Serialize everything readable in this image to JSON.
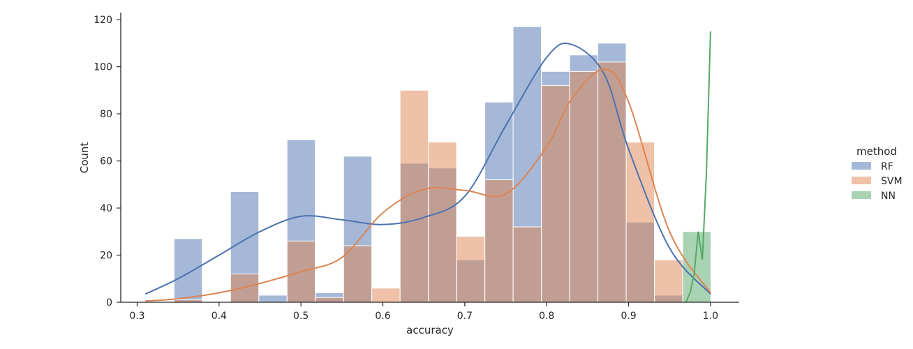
{
  "chart_data": {
    "type": "histogram",
    "xlabel": "accuracy",
    "ylabel": "Count",
    "xlim": [
      0.28,
      1.035
    ],
    "ylim": [
      0,
      123
    ],
    "x_ticks": [
      0.3,
      0.4,
      0.5,
      0.6,
      0.7,
      0.8,
      0.9,
      1.0
    ],
    "x_tick_labels": [
      "0.3",
      "0.4",
      "0.5",
      "0.6",
      "0.7",
      "0.8",
      "0.9",
      "1.0"
    ],
    "y_ticks": [
      0,
      20,
      40,
      60,
      80,
      100,
      120
    ],
    "y_tick_labels": [
      "0",
      "20",
      "40",
      "60",
      "80",
      "100",
      "120"
    ],
    "bin_edges": [
      0.3105,
      0.345,
      0.3795,
      0.414,
      0.4485,
      0.483,
      0.5175,
      0.552,
      0.5865,
      0.621,
      0.6555,
      0.69,
      0.7245,
      0.759,
      0.7935,
      0.828,
      0.8625,
      0.897,
      0.9315,
      0.966,
      1.0005
    ],
    "legend": {
      "title": "method",
      "position": "right",
      "entries": [
        "RF",
        "SVM",
        "NN"
      ]
    },
    "series": [
      {
        "name": "RF",
        "color": "#4c72b0",
        "counts": [
          0,
          27,
          0,
          47,
          3,
          69,
          4,
          62,
          0,
          59,
          57,
          18,
          85,
          117,
          98,
          105,
          110,
          34,
          3,
          0
        ],
        "kde": {
          "x": [
            0.31,
            0.35,
            0.4,
            0.45,
            0.5,
            0.55,
            0.6,
            0.65,
            0.7,
            0.75,
            0.8,
            0.83,
            0.87,
            0.9,
            0.95,
            1.0
          ],
          "y": [
            3.5,
            10,
            20,
            30,
            36.5,
            35,
            33,
            36,
            45,
            75,
            104,
            109.5,
            97,
            65,
            23,
            3.5
          ]
        }
      },
      {
        "name": "SVM",
        "color": "#dd8452",
        "counts": [
          0,
          1,
          0,
          12,
          0,
          26,
          2,
          24,
          6,
          90,
          68,
          28,
          52,
          32,
          92,
          98,
          102,
          68,
          18,
          0
        ],
        "kde": {
          "x": [
            0.31,
            0.35,
            0.4,
            0.45,
            0.5,
            0.55,
            0.6,
            0.65,
            0.7,
            0.75,
            0.8,
            0.83,
            0.87,
            0.9,
            0.95,
            1.0
          ],
          "y": [
            0.5,
            1.5,
            4,
            8,
            13,
            19,
            38,
            48,
            47.5,
            46,
            66,
            86,
            99,
            85,
            30,
            4
          ]
        }
      },
      {
        "name": "NN",
        "color": "#55a868",
        "counts": [
          0,
          0,
          0,
          0,
          0,
          0,
          0,
          0,
          0,
          0,
          0,
          0,
          0,
          0,
          0,
          0,
          0,
          0,
          0,
          30
        ],
        "kde": {
          "x": [
            0.97,
            0.975,
            0.98,
            0.985,
            0.99,
            0.995,
            1.0
          ],
          "y": [
            0,
            4,
            12,
            30,
            18,
            55,
            115
          ]
        }
      }
    ]
  }
}
